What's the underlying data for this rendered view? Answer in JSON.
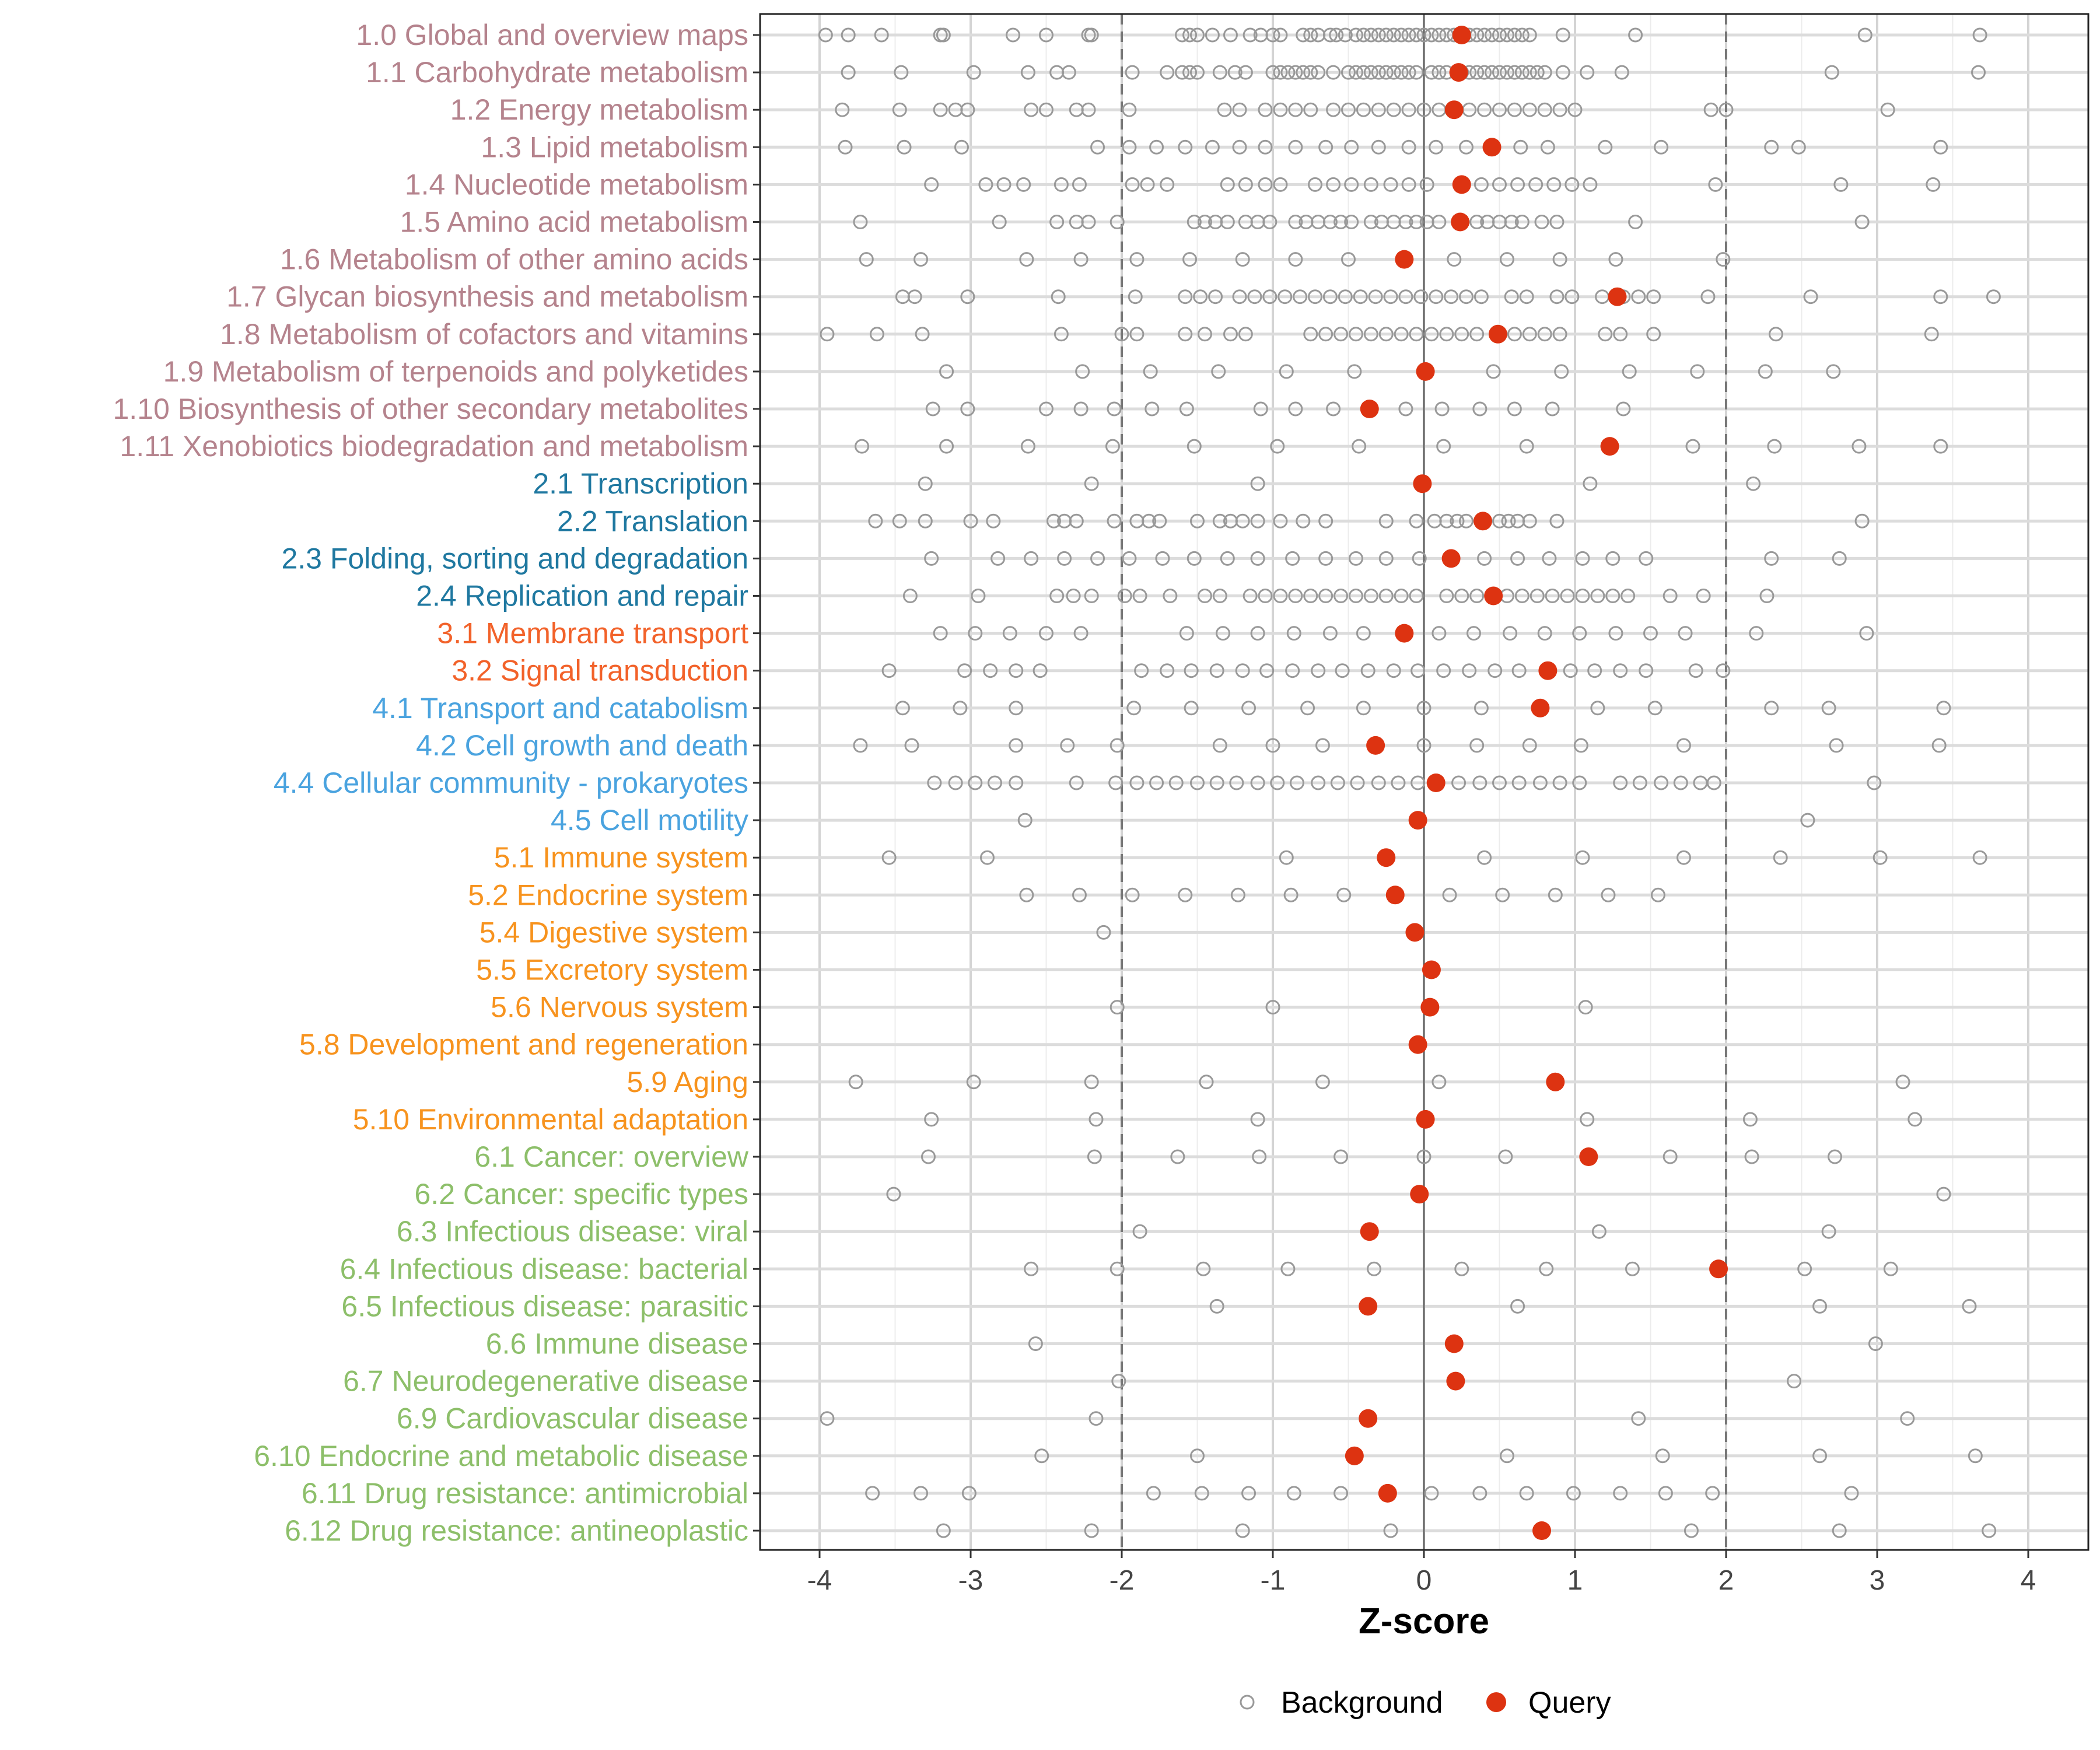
{
  "chart_data": {
    "type": "scatter",
    "xlabel": "Z-score",
    "xlim": [
      -4.3,
      4.4
    ],
    "x_ticks": [
      -4,
      -3,
      -2,
      -1,
      0,
      1,
      2,
      3,
      4
    ],
    "x_tick_labels": [
      "-4",
      "-3",
      "-2",
      "-1",
      "0",
      "1",
      "2",
      "3",
      "4"
    ],
    "reference_lines": {
      "solid": [
        0
      ],
      "dashed": [
        -2,
        2
      ]
    },
    "grid": true,
    "legend": {
      "placement": "bottom",
      "entries": [
        "Background",
        "Query"
      ]
    },
    "colors": {
      "background_point": "#999999",
      "query_point": "#DD3311",
      "group1": "#B5838D",
      "group2": "#1F78A0",
      "group3": "#F2622A",
      "group4": "#4AA3DF",
      "group5": "#F7931E",
      "group6": "#8DBF6A"
    },
    "categories": [
      {
        "label": "1.0 Global and overview maps",
        "group": 1,
        "query": 0.25,
        "background": [
          -3.96,
          -3.81,
          -3.59,
          -3.2,
          -3.18,
          -2.72,
          -2.5,
          -2.22,
          -2.2,
          -1.6,
          -1.55,
          -1.5,
          -1.4,
          -1.28,
          -1.15,
          -1.08,
          -1.0,
          -0.95,
          -0.8,
          -0.75,
          -0.7,
          -0.62,
          -0.58,
          -0.52,
          -0.45,
          -0.4,
          -0.35,
          -0.3,
          -0.25,
          -0.2,
          -0.15,
          -0.1,
          -0.05,
          0,
          0.05,
          0.1,
          0.15,
          0.2,
          0.3,
          0.35,
          0.4,
          0.45,
          0.5,
          0.55,
          0.6,
          0.65,
          0.7,
          0.92,
          1.4,
          2.92,
          3.68
        ]
      },
      {
        "label": "1.1 Carbohydrate metabolism",
        "group": 1,
        "query": 0.23,
        "background": [
          -3.81,
          -3.46,
          -2.98,
          -2.62,
          -2.43,
          -2.35,
          -1.93,
          -1.7,
          -1.6,
          -1.55,
          -1.5,
          -1.35,
          -1.25,
          -1.18,
          -1.0,
          -0.95,
          -0.9,
          -0.85,
          -0.8,
          -0.75,
          -0.7,
          -0.6,
          -0.5,
          -0.45,
          -0.4,
          -0.35,
          -0.3,
          -0.25,
          -0.2,
          -0.15,
          -0.1,
          -0.05,
          0.05,
          0.1,
          0.15,
          0.25,
          0.3,
          0.35,
          0.4,
          0.45,
          0.5,
          0.55,
          0.6,
          0.65,
          0.7,
          0.75,
          0.8,
          0.92,
          1.08,
          1.31,
          2.7,
          3.67
        ]
      },
      {
        "label": "1.2 Energy metabolism",
        "group": 1,
        "query": 0.2,
        "background": [
          -3.85,
          -3.47,
          -3.2,
          -3.1,
          -3.02,
          -2.6,
          -2.5,
          -2.3,
          -2.22,
          -1.95,
          -1.32,
          -1.22,
          -1.05,
          -0.95,
          -0.85,
          -0.75,
          -0.6,
          -0.5,
          -0.4,
          -0.3,
          -0.2,
          -0.1,
          0,
          0.1,
          0.3,
          0.4,
          0.5,
          0.6,
          0.7,
          0.8,
          0.9,
          1.0,
          1.9,
          2.0,
          3.07
        ]
      },
      {
        "label": "1.3 Lipid metabolism",
        "group": 1,
        "query": 0.45,
        "background": [
          -3.83,
          -3.44,
          -3.06,
          -2.16,
          -1.95,
          -1.77,
          -1.58,
          -1.4,
          -1.22,
          -1.05,
          -0.85,
          -0.65,
          -0.48,
          -0.3,
          -0.1,
          0.08,
          0.28,
          0.64,
          0.82,
          1.2,
          1.57,
          2.3,
          2.48,
          3.42
        ]
      },
      {
        "label": "1.4 Nucleotide metabolism",
        "group": 1,
        "query": 0.25,
        "background": [
          -3.26,
          -2.9,
          -2.78,
          -2.65,
          -2.4,
          -2.28,
          -1.93,
          -1.83,
          -1.7,
          -1.3,
          -1.18,
          -1.05,
          -0.95,
          -0.72,
          -0.6,
          -0.48,
          -0.35,
          -0.22,
          -0.1,
          0.02,
          0.38,
          0.5,
          0.62,
          0.74,
          0.86,
          0.98,
          1.1,
          1.93,
          2.76,
          3.37
        ]
      },
      {
        "label": "1.5 Amino acid metabolism",
        "group": 1,
        "query": 0.24,
        "background": [
          -3.73,
          -2.81,
          -2.43,
          -2.3,
          -2.22,
          -2.03,
          -1.52,
          -1.45,
          -1.38,
          -1.3,
          -1.18,
          -1.1,
          -1.02,
          -0.85,
          -0.78,
          -0.7,
          -0.62,
          -0.55,
          -0.48,
          -0.35,
          -0.28,
          -0.2,
          -0.12,
          -0.05,
          0.02,
          0.1,
          0.35,
          0.42,
          0.5,
          0.58,
          0.65,
          0.78,
          0.88,
          1.4,
          2.9
        ]
      },
      {
        "label": "1.6 Metabolism of other amino acids",
        "group": 1,
        "query": -0.13,
        "background": [
          -3.69,
          -3.33,
          -2.63,
          -2.27,
          -1.9,
          -1.55,
          -1.2,
          -0.85,
          -0.5,
          0.2,
          0.55,
          0.9,
          1.27,
          1.98
        ]
      },
      {
        "label": "1.7 Glycan biosynthesis and metabolism",
        "group": 1,
        "query": 1.28,
        "background": [
          -3.45,
          -3.37,
          -3.02,
          -2.42,
          -1.91,
          -1.58,
          -1.48,
          -1.38,
          -1.22,
          -1.12,
          -1.02,
          -0.92,
          -0.82,
          -0.72,
          -0.62,
          -0.52,
          -0.42,
          -0.32,
          -0.22,
          -0.12,
          -0.02,
          0.08,
          0.18,
          0.28,
          0.38,
          0.58,
          0.68,
          0.88,
          0.98,
          1.18,
          1.32,
          1.42,
          1.52,
          1.88,
          2.56,
          3.42,
          3.77
        ]
      },
      {
        "label": "1.8 Metabolism of cofactors and vitamins",
        "group": 1,
        "query": 0.49,
        "background": [
          -3.95,
          -3.62,
          -3.32,
          -2.4,
          -2.0,
          -1.9,
          -1.58,
          -1.45,
          -1.28,
          -1.18,
          -0.75,
          -0.65,
          -0.55,
          -0.45,
          -0.35,
          -0.25,
          -0.15,
          -0.05,
          0.05,
          0.15,
          0.25,
          0.35,
          0.6,
          0.7,
          0.8,
          0.9,
          1.2,
          1.3,
          1.52,
          2.33,
          3.36
        ]
      },
      {
        "label": "1.9 Metabolism of terpenoids and polyketides",
        "group": 1,
        "query": 0.01,
        "background": [
          -3.16,
          -2.26,
          -1.81,
          -1.36,
          -0.91,
          -0.46,
          0.46,
          0.91,
          1.36,
          1.81,
          2.26,
          2.71
        ]
      },
      {
        "label": "1.10 Biosynthesis of other secondary metabolites",
        "group": 1,
        "query": -0.36,
        "background": [
          -3.25,
          -3.02,
          -2.5,
          -2.27,
          -2.05,
          -1.8,
          -1.57,
          -1.08,
          -0.85,
          -0.6,
          -0.12,
          0.12,
          0.37,
          0.6,
          0.85,
          1.32
        ]
      },
      {
        "label": "1.11 Xenobiotics biodegradation and metabolism",
        "group": 1,
        "query": 1.23,
        "background": [
          -3.72,
          -3.16,
          -2.62,
          -2.06,
          -1.52,
          -0.97,
          -0.43,
          0.13,
          0.68,
          1.78,
          2.32,
          2.88,
          3.42
        ]
      },
      {
        "label": "2.1 Transcription",
        "group": 2,
        "query": -0.01,
        "background": [
          -3.3,
          -2.2,
          -1.1,
          1.1,
          2.18
        ]
      },
      {
        "label": "2.2 Translation",
        "group": 2,
        "query": 0.39,
        "background": [
          -3.63,
          -3.47,
          -3.3,
          -3.0,
          -2.85,
          -2.45,
          -2.38,
          -2.3,
          -2.05,
          -1.9,
          -1.82,
          -1.75,
          -1.5,
          -1.35,
          -1.28,
          -1.2,
          -1.1,
          -0.95,
          -0.8,
          -0.65,
          -0.25,
          -0.05,
          0.07,
          0.15,
          0.22,
          0.28,
          0.5,
          0.56,
          0.62,
          0.7,
          0.88,
          2.9
        ]
      },
      {
        "label": "2.3 Folding, sorting and degradation",
        "group": 2,
        "query": 0.18,
        "background": [
          -3.26,
          -2.82,
          -2.6,
          -2.38,
          -2.16,
          -1.95,
          -1.73,
          -1.52,
          -1.3,
          -1.1,
          -0.87,
          -0.65,
          -0.45,
          -0.25,
          -0.03,
          0.4,
          0.62,
          0.83,
          1.05,
          1.25,
          1.47,
          2.3,
          2.75
        ]
      },
      {
        "label": "2.4 Replication and repair",
        "group": 2,
        "query": 0.46,
        "background": [
          -3.4,
          -2.95,
          -2.43,
          -2.32,
          -2.2,
          -1.98,
          -1.88,
          -1.68,
          -1.45,
          -1.35,
          -1.15,
          -1.05,
          -0.95,
          -0.85,
          -0.75,
          -0.65,
          -0.55,
          -0.45,
          -0.35,
          -0.25,
          -0.15,
          -0.05,
          0.15,
          0.25,
          0.35,
          0.55,
          0.65,
          0.75,
          0.85,
          0.95,
          1.05,
          1.15,
          1.25,
          1.35,
          1.63,
          1.85,
          2.27
        ]
      },
      {
        "label": "3.1 Membrane transport",
        "group": 3,
        "query": -0.13,
        "background": [
          -3.2,
          -2.97,
          -2.74,
          -2.5,
          -2.27,
          -1.57,
          -1.33,
          -1.1,
          -0.86,
          -0.62,
          -0.4,
          0.1,
          0.33,
          0.57,
          0.8,
          1.03,
          1.27,
          1.5,
          1.73,
          2.2,
          2.93
        ]
      },
      {
        "label": "3.2 Signal transduction",
        "group": 3,
        "query": 0.82,
        "background": [
          -3.54,
          -3.04,
          -2.87,
          -2.7,
          -2.54,
          -1.87,
          -1.7,
          -1.54,
          -1.37,
          -1.2,
          -1.04,
          -0.87,
          -0.7,
          -0.54,
          -0.37,
          -0.2,
          -0.04,
          0.13,
          0.3,
          0.47,
          0.63,
          0.97,
          1.13,
          1.3,
          1.47,
          1.8,
          1.98
        ]
      },
      {
        "label": "4.1 Transport and catabolism",
        "group": 4,
        "query": 0.77,
        "background": [
          -3.45,
          -3.07,
          -2.7,
          -1.92,
          -1.54,
          -1.16,
          -0.77,
          -0.4,
          0,
          0.38,
          1.15,
          1.53,
          2.3,
          2.68,
          3.44
        ]
      },
      {
        "label": "4.2 Cell growth and death",
        "group": 4,
        "query": -0.32,
        "background": [
          -3.73,
          -3.39,
          -2.7,
          -2.36,
          -2.03,
          -1.35,
          -1.0,
          -0.67,
          0,
          0.35,
          0.7,
          1.04,
          1.72,
          2.73,
          3.41
        ]
      },
      {
        "label": "4.4 Cellular community - prokaryotes",
        "group": 4,
        "query": 0.08,
        "background": [
          -3.24,
          -3.1,
          -2.97,
          -2.84,
          -2.7,
          -2.3,
          -2.04,
          -1.9,
          -1.77,
          -1.64,
          -1.5,
          -1.37,
          -1.24,
          -1.1,
          -0.97,
          -0.84,
          -0.7,
          -0.57,
          -0.44,
          -0.3,
          -0.17,
          -0.04,
          0.23,
          0.37,
          0.5,
          0.63,
          0.77,
          0.9,
          1.03,
          1.3,
          1.43,
          1.57,
          1.7,
          1.83,
          1.92,
          2.98
        ]
      },
      {
        "label": "4.5 Cell motility",
        "group": 4,
        "query": -0.04,
        "background": [
          -2.64,
          2.54
        ]
      },
      {
        "label": "5.1 Immune system",
        "group": 5,
        "query": -0.25,
        "background": [
          -3.54,
          -2.89,
          -0.91,
          0.4,
          1.05,
          1.72,
          2.36,
          3.02,
          3.68
        ]
      },
      {
        "label": "5.2 Endocrine system",
        "group": 5,
        "query": -0.19,
        "background": [
          -2.63,
          -2.28,
          -1.93,
          -1.58,
          -1.23,
          -0.88,
          -0.53,
          0.17,
          0.52,
          0.87,
          1.22,
          1.55
        ]
      },
      {
        "label": "5.4 Digestive system",
        "group": 5,
        "query": -0.06,
        "background": [
          -2.12
        ]
      },
      {
        "label": "5.5 Excretory system",
        "group": 5,
        "query": 0.05,
        "background": []
      },
      {
        "label": "5.6 Nervous system",
        "group": 5,
        "query": 0.04,
        "background": [
          -2.03,
          -1.0,
          1.07
        ]
      },
      {
        "label": "5.8 Development and regeneration",
        "group": 5,
        "query": -0.04,
        "background": []
      },
      {
        "label": "5.9 Aging",
        "group": 5,
        "query": 0.87,
        "background": [
          -3.76,
          -2.98,
          -2.2,
          -1.44,
          -0.67,
          0.1,
          3.17
        ]
      },
      {
        "label": "5.10 Environmental adaptation",
        "group": 5,
        "query": 0.01,
        "background": [
          -3.26,
          -2.17,
          -1.1,
          1.08,
          2.16,
          3.25
        ]
      },
      {
        "label": "6.1 Cancer: overview",
        "group": 6,
        "query": 1.09,
        "background": [
          -3.28,
          -2.18,
          -1.63,
          -1.09,
          -0.55,
          0,
          0.54,
          1.63,
          2.17,
          2.72
        ]
      },
      {
        "label": "6.2 Cancer: specific types",
        "group": 6,
        "query": -0.03,
        "background": [
          -3.51,
          3.44
        ]
      },
      {
        "label": "6.3 Infectious disease: viral",
        "group": 6,
        "query": -0.36,
        "background": [
          -1.88,
          1.16,
          2.68
        ]
      },
      {
        "label": "6.4 Infectious disease: bacterial",
        "group": 6,
        "query": 1.95,
        "background": [
          -2.6,
          -2.03,
          -1.46,
          -0.9,
          -0.33,
          0.25,
          0.81,
          1.38,
          2.52,
          3.09
        ]
      },
      {
        "label": "6.5 Infectious disease: parasitic",
        "group": 6,
        "query": -0.37,
        "background": [
          -1.37,
          0.62,
          2.62,
          3.61
        ]
      },
      {
        "label": "6.6 Immune disease",
        "group": 6,
        "query": 0.2,
        "background": [
          -2.57,
          2.99
        ]
      },
      {
        "label": "6.7 Neurodegenerative disease",
        "group": 6,
        "query": 0.21,
        "background": [
          -2.02,
          2.45
        ]
      },
      {
        "label": "6.9 Cardiovascular disease",
        "group": 6,
        "query": -0.37,
        "background": [
          -3.95,
          -2.17,
          1.42,
          3.2
        ]
      },
      {
        "label": "6.10 Endocrine and metabolic disease",
        "group": 6,
        "query": -0.46,
        "background": [
          -2.53,
          -1.5,
          0.55,
          1.58,
          2.62,
          3.65
        ]
      },
      {
        "label": "6.11 Drug resistance: antimicrobial",
        "group": 6,
        "query": -0.24,
        "background": [
          -3.65,
          -3.33,
          -3.01,
          -1.79,
          -1.47,
          -1.16,
          -0.86,
          -0.55,
          0.05,
          0.37,
          0.68,
          0.99,
          1.3,
          1.6,
          1.91,
          2.83
        ]
      },
      {
        "label": "6.12 Drug resistance: antineoplastic",
        "group": 6,
        "query": 0.78,
        "background": [
          -3.18,
          -2.2,
          -1.2,
          -0.22,
          1.77,
          2.75,
          3.74
        ]
      }
    ]
  }
}
